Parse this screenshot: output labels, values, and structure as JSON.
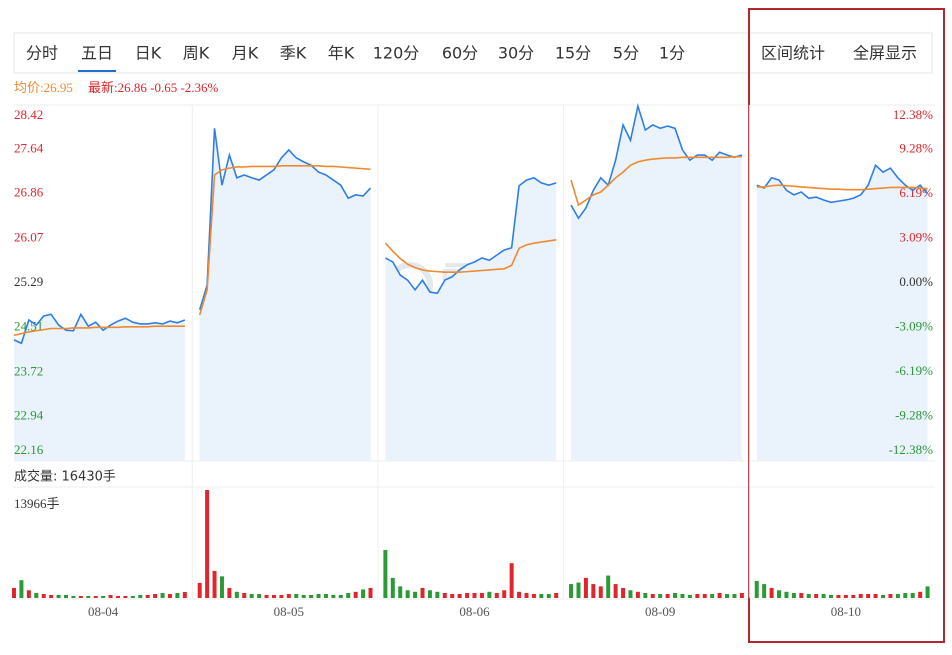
{
  "chart_data": {
    "type": "line",
    "tabs": [
      "分时",
      "五日",
      "日K",
      "周K",
      "月K",
      "季K",
      "年K",
      "120分",
      "60分",
      "30分",
      "15分",
      "5分",
      "1分"
    ],
    "active_tab": 1,
    "actions": [
      "区间统计",
      "全屏显示"
    ],
    "avg_info": "均价:26.95",
    "latest_info": "最新:26.86 -0.65 -2.36%",
    "watermark": "雪球",
    "x": [
      0,
      1,
      2,
      3,
      4,
      5,
      6,
      7,
      8,
      9,
      10,
      11,
      12,
      13,
      14,
      15,
      16,
      17,
      18,
      19,
      20,
      21,
      22,
      23,
      24,
      25,
      26,
      27,
      28,
      29,
      30,
      31,
      32,
      33,
      34,
      35,
      36,
      37,
      38,
      39,
      40,
      41,
      42,
      43,
      44,
      45,
      46,
      47,
      48,
      49,
      50,
      51,
      52,
      53,
      54,
      55,
      56,
      57,
      58,
      59,
      60,
      61,
      62,
      63,
      64,
      65,
      66,
      67,
      68,
      69,
      70,
      71,
      72,
      73,
      74,
      75,
      76,
      77,
      78,
      79,
      80,
      81,
      82,
      83,
      84,
      85,
      86,
      87,
      88,
      89,
      90,
      91,
      92,
      93,
      94,
      95,
      96,
      97,
      98,
      99,
      100,
      101,
      102,
      103,
      104,
      105,
      106,
      107,
      108,
      109,
      110,
      111,
      112,
      113,
      114,
      115,
      116,
      117,
      118,
      119,
      120,
      121,
      122,
      123
    ],
    "xlim": [
      0,
      124
    ],
    "xticks": [
      {
        "value": 12,
        "label": "08-04"
      },
      {
        "value": 37,
        "label": "08-05"
      },
      {
        "value": 62,
        "label": "08-06"
      },
      {
        "value": 87,
        "label": "08-09"
      },
      {
        "value": 112,
        "label": "08-10"
      }
    ],
    "ylim": [
      22.16,
      28.42
    ],
    "yticks": [
      28.42,
      27.64,
      26.86,
      26.07,
      25.29,
      24.51,
      23.72,
      22.94,
      22.16
    ],
    "y2lim": [
      -12.38,
      12.38
    ],
    "y2ticks": [
      {
        "value": 12.38,
        "label": "12.38%"
      },
      {
        "value": 9.28,
        "label": "9.28%"
      },
      {
        "value": 6.19,
        "label": "6.19%"
      },
      {
        "value": 3.09,
        "label": "3.09%"
      },
      {
        "value": 0,
        "label": "0.00%"
      },
      {
        "value": -3.09,
        "label": "-3.09%"
      },
      {
        "value": -6.19,
        "label": "-6.19%"
      },
      {
        "value": -9.28,
        "label": "-9.28%"
      },
      {
        "value": -12.38,
        "label": "-12.38%"
      }
    ],
    "series": [
      {
        "color": "#2f7ee6",
        "values": [
          24.29,
          24.23,
          24.64,
          24.55,
          24.71,
          24.74,
          24.55,
          24.46,
          24.45,
          24.74,
          24.53,
          24.6,
          24.46,
          24.55,
          24.62,
          24.67,
          24.6,
          24.57,
          24.57,
          24.59,
          24.57,
          24.62,
          24.59,
          24.64,
          null,
          24.82,
          25.25,
          28.01,
          27.01,
          27.54,
          27.14,
          27.19,
          27.14,
          27.1,
          27.19,
          27.28,
          27.49,
          27.63,
          27.49,
          27.42,
          27.36,
          27.24,
          27.19,
          27.1,
          27.01,
          26.78,
          26.84,
          26.82,
          26.96,
          null,
          25.73,
          25.66,
          25.43,
          25.34,
          25.17,
          25.34,
          25.13,
          25.11,
          25.34,
          25.4,
          25.52,
          25.61,
          25.66,
          25.73,
          25.69,
          25.78,
          25.87,
          25.91,
          27.0,
          27.1,
          27.14,
          27.05,
          27.01,
          27.05,
          null,
          26.66,
          26.43,
          26.61,
          26.92,
          27.14,
          27.01,
          27.45,
          28.07,
          27.8,
          28.4,
          27.98,
          28.07,
          28.01,
          28.05,
          28.01,
          27.63,
          27.45,
          27.54,
          27.54,
          27.45,
          27.59,
          27.54,
          27.5,
          27.54,
          null,
          27.01,
          26.96,
          27.14,
          27.1,
          26.92,
          26.84,
          26.89,
          26.78,
          26.8,
          26.75,
          26.71,
          26.73,
          26.75,
          26.78,
          26.84,
          27.01,
          27.36,
          27.24,
          27.31,
          27.14,
          27.01,
          26.92,
          27.01,
          26.86
        ]
      },
      {
        "color": "#f0892f",
        "values": [
          24.37,
          24.4,
          24.43,
          24.45,
          24.47,
          24.49,
          24.49,
          24.49,
          24.5,
          24.5,
          24.5,
          24.51,
          24.51,
          24.51,
          24.51,
          24.52,
          24.52,
          24.52,
          24.52,
          24.53,
          24.53,
          24.53,
          24.53,
          24.53,
          null,
          24.73,
          25.17,
          27.19,
          27.28,
          27.31,
          27.33,
          27.33,
          27.34,
          27.34,
          27.34,
          27.34,
          27.35,
          27.35,
          27.35,
          27.35,
          27.35,
          27.35,
          27.34,
          27.34,
          27.33,
          27.32,
          27.31,
          27.3,
          27.29,
          null,
          25.99,
          25.85,
          25.72,
          25.62,
          25.56,
          25.52,
          25.5,
          25.49,
          25.48,
          25.48,
          25.48,
          25.49,
          25.5,
          25.51,
          25.52,
          25.53,
          25.54,
          25.6,
          25.9,
          25.96,
          25.99,
          26.01,
          26.03,
          26.05,
          null,
          27.1,
          26.66,
          26.75,
          26.84,
          26.89,
          27.01,
          27.14,
          27.24,
          27.36,
          27.42,
          27.45,
          27.47,
          27.48,
          27.49,
          27.49,
          27.5,
          27.5,
          27.5,
          27.5,
          27.5,
          27.5,
          27.5,
          27.51,
          27.51,
          null,
          26.98,
          26.98,
          27.0,
          27.01,
          27.0,
          26.99,
          26.98,
          26.97,
          26.96,
          26.95,
          26.94,
          26.94,
          26.93,
          26.93,
          26.93,
          26.94,
          26.95,
          26.96,
          26.97,
          26.97,
          26.97,
          26.97,
          26.96,
          26.95
        ]
      }
    ],
    "volume_title": "成交量: 16430手",
    "volume_ylim": [
      0,
      13966
    ],
    "volume_yticks": [
      {
        "value": 13966,
        "label": "13966手"
      }
    ],
    "volume_up_color": "#e0262c",
    "volume_down_color": "#2a9a35",
    "volume": [
      1300,
      2300,
      1000,
      650,
      520,
      390,
      390,
      390,
      260,
      260,
      260,
      260,
      260,
      390,
      260,
      260,
      260,
      390,
      390,
      520,
      650,
      520,
      650,
      780,
      null,
      1950,
      13966,
      3500,
      2800,
      1300,
      800,
      650,
      520,
      520,
      390,
      390,
      390,
      520,
      520,
      390,
      390,
      520,
      520,
      390,
      390,
      650,
      800,
      1100,
      1300,
      null,
      6200,
      2600,
      1500,
      1000,
      800,
      1300,
      1000,
      800,
      650,
      520,
      520,
      650,
      650,
      650,
      800,
      650,
      1000,
      4500,
      800,
      650,
      520,
      520,
      520,
      650,
      null,
      1800,
      2000,
      2600,
      1800,
      1500,
      2900,
      1800,
      1300,
      1000,
      800,
      650,
      520,
      520,
      520,
      650,
      520,
      390,
      520,
      520,
      520,
      650,
      520,
      520,
      650,
      null,
      2200,
      1800,
      1300,
      1000,
      800,
      650,
      650,
      520,
      520,
      520,
      390,
      390,
      390,
      390,
      520,
      520,
      520,
      390,
      520,
      520,
      650,
      650,
      800,
      1500
    ]
  }
}
